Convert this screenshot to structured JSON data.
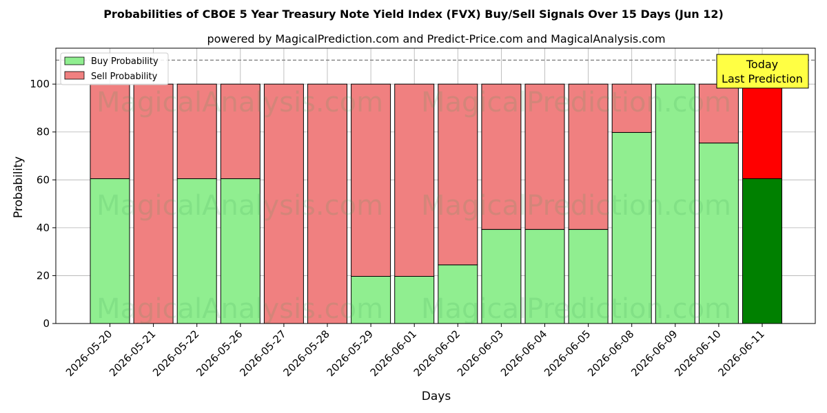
{
  "chart_data": {
    "type": "bar",
    "stacked": true,
    "title": "Probabilities of CBOE 5 Year Treasury Note Yield Index (FVX) Buy/Sell Signals Over 15 Days (Jun 12)",
    "subtitle": "powered by MagicalPrediction.com and Predict-Price.com and MagicalAnalysis.com",
    "xlabel": "Days",
    "ylabel": "Probability",
    "ylim": [
      0,
      115
    ],
    "yticks": [
      0,
      20,
      40,
      60,
      80,
      100
    ],
    "reference_line": 110,
    "grid": true,
    "legend_position": "top-left",
    "categories": [
      "2026-05-20",
      "2026-05-21",
      "2026-05-22",
      "2026-05-26",
      "2026-05-27",
      "2026-05-28",
      "2026-05-29",
      "2026-06-01",
      "2026-06-02",
      "2026-06-03",
      "2026-06-04",
      "2026-06-05",
      "2026-06-08",
      "2026-06-09",
      "2026-06-10",
      "2026-06-11"
    ],
    "series": [
      {
        "name": "Buy Probability",
        "color": "#90ee90",
        "values": [
          60.5,
          0,
          60.5,
          60.5,
          0,
          0,
          19.7,
          19.7,
          24.5,
          39.3,
          39.3,
          39.3,
          79.8,
          100,
          75.4,
          60.5
        ]
      },
      {
        "name": "Sell Probability",
        "color": "#f08080",
        "values": [
          39.5,
          100,
          39.5,
          39.5,
          100,
          100,
          80.3,
          80.3,
          75.5,
          60.7,
          60.7,
          60.7,
          20.2,
          0,
          24.6,
          39.5
        ]
      }
    ],
    "highlight": {
      "index": 15,
      "buy_color": "#008000",
      "sell_color": "#ff0000"
    },
    "annotation": {
      "lines": [
        "Today",
        "Last Prediction"
      ],
      "color": "#ffff44"
    },
    "watermarks": [
      "MagicalAnalysis.com",
      "MagicalPrediction.com"
    ]
  }
}
